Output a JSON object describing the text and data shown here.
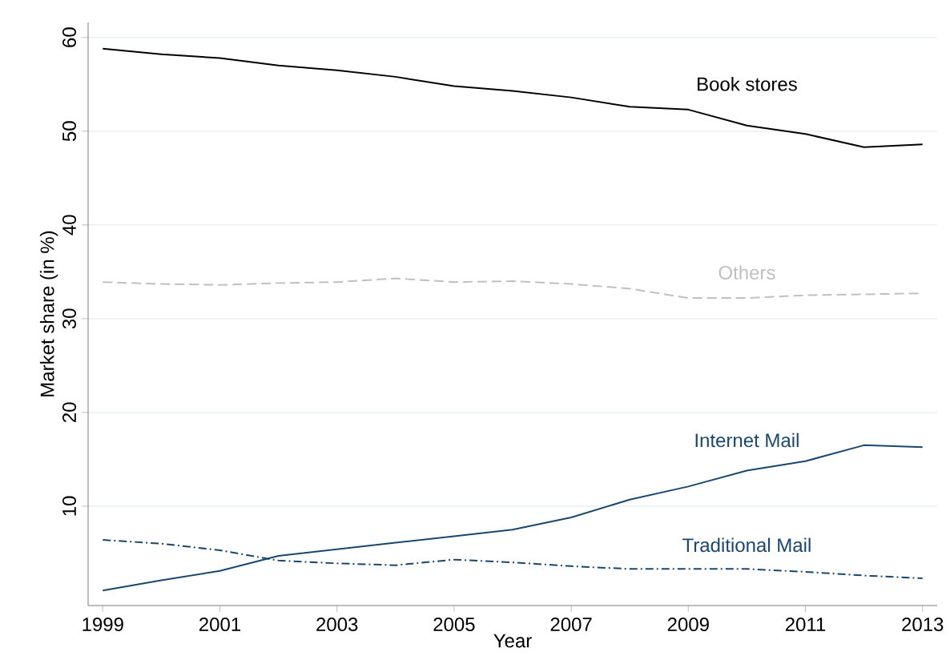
{
  "chart_data": {
    "type": "line",
    "xlabel": "Year",
    "ylabel": "Market share (in %)",
    "x": [
      1999,
      2000,
      2001,
      2002,
      2003,
      2004,
      2005,
      2006,
      2007,
      2008,
      2009,
      2010,
      2011,
      2012,
      2013
    ],
    "series": [
      {
        "name": "Book stores",
        "color": "#000000",
        "line_style": "solid",
        "values": [
          58.8,
          58.2,
          57.8,
          57.0,
          56.5,
          55.8,
          54.8,
          54.3,
          53.6,
          52.6,
          52.3,
          50.6,
          49.7,
          48.3,
          48.6
        ]
      },
      {
        "name": "Others",
        "color": "#c0c0c0",
        "line_style": "dashed",
        "values": [
          33.9,
          33.7,
          33.6,
          33.8,
          33.9,
          34.3,
          33.9,
          34.0,
          33.7,
          33.2,
          32.2,
          32.2,
          32.5,
          32.6,
          32.7
        ]
      },
      {
        "name": "Internet Mail",
        "color": "#1a476f",
        "line_style": "solid",
        "values": [
          1.0,
          2.1,
          3.1,
          4.7,
          5.4,
          6.1,
          6.8,
          7.5,
          8.8,
          10.7,
          12.1,
          13.8,
          14.8,
          16.5,
          16.3
        ]
      },
      {
        "name": "Traditional Mail",
        "color": "#1a476f",
        "line_style": "dashdot",
        "values": [
          6.4,
          6.0,
          5.3,
          4.2,
          3.9,
          3.7,
          4.3,
          4.0,
          3.6,
          3.3,
          3.3,
          3.3,
          3.0,
          2.6,
          2.3
        ]
      }
    ],
    "xlim": [
      1998.75,
      2013.25
    ],
    "ylim": [
      -0.6,
      61.6
    ],
    "xticks": [
      1999,
      2001,
      2003,
      2005,
      2007,
      2009,
      2011,
      2013
    ],
    "yticks": [
      10,
      20,
      30,
      40,
      50,
      60
    ],
    "grid": "y",
    "marker": "none"
  }
}
